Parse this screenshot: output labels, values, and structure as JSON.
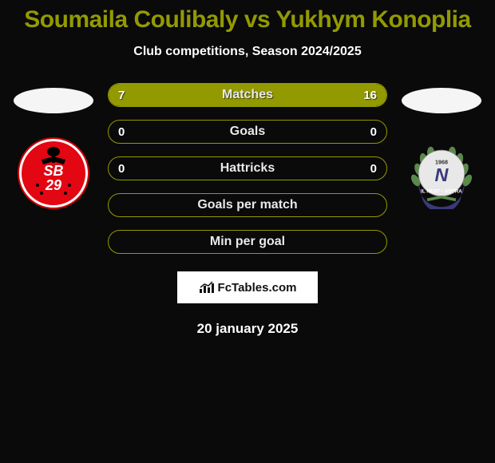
{
  "title": "Soumaila Coulibaly vs Yukhym Konoplia",
  "subtitle": "Club competitions, Season 2024/2025",
  "watermark": "FcTables.com",
  "date": "20 january 2025",
  "colors": {
    "bar_border": "#939a00",
    "bar_fill_a": "#939a00",
    "text_label": "#e9e9e9",
    "title_color": "#939a00"
  },
  "stats": [
    {
      "label": "Matches",
      "a": "7",
      "b": "16",
      "a_pct": 30,
      "b_pct": 70,
      "show_vals": true
    },
    {
      "label": "Goals",
      "a": "0",
      "b": "0",
      "a_pct": 0,
      "b_pct": 0,
      "show_vals": true
    },
    {
      "label": "Hattricks",
      "a": "0",
      "b": "0",
      "a_pct": 0,
      "b_pct": 0,
      "show_vals": true
    },
    {
      "label": "Goals per match",
      "a": "",
      "b": "",
      "a_pct": 0,
      "b_pct": 0,
      "show_vals": false
    },
    {
      "label": "Min per goal",
      "a": "",
      "b": "",
      "a_pct": 0,
      "b_pct": 0,
      "show_vals": false
    }
  ],
  "logo_left": {
    "bg": "#ffffff",
    "circle": "#e30613",
    "text1": "SB",
    "text2": "29"
  },
  "logo_right": {
    "bg": "#ffffff",
    "laurel": "#5a8a4a",
    "inner": "#e8e8e8",
    "letter": "N",
    "year": "1968",
    "band_text": "IL NEST - SOTRA"
  }
}
